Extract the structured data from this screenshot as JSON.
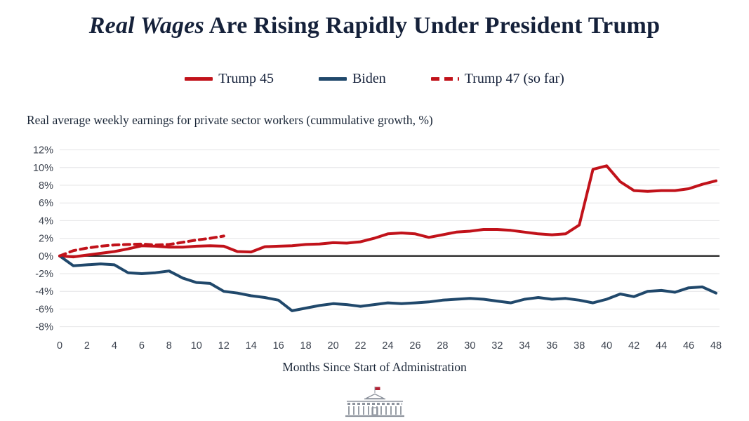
{
  "title": {
    "italic": "Real Wages",
    "rest": " Are Rising Rapidly Under President Trump"
  },
  "subtitle": "Real average weekly earnings for private sector workers (cummulative growth, %)",
  "legend": [
    {
      "label": "Trump 45",
      "style": "solid",
      "color": "#c1121a"
    },
    {
      "label": "Biden",
      "style": "solid",
      "color": "#20486b"
    },
    {
      "label": "Trump 47 (so far)",
      "style": "dashed",
      "color": "#c1121a"
    }
  ],
  "colors": {
    "grid": "#e4e4e6",
    "zero_line": "#1a1a1a",
    "tick_text": "#3b424e",
    "title_text": "#15213a",
    "logo_gray": "#8d939d",
    "flag_red": "#b22234"
  },
  "chart_data": {
    "type": "line",
    "title": "Real Wages Are Rising Rapidly Under President Trump",
    "subtitle": "Real average weekly earnings for private sector workers (cummulative growth, %)",
    "xlabel": "Months Since Start of Administration",
    "ylabel": "",
    "xlim": [
      0,
      48
    ],
    "ylim": [
      -8,
      12
    ],
    "grid": true,
    "zero_line": true,
    "legend_position": "top",
    "xticks": [
      0,
      2,
      4,
      6,
      8,
      10,
      12,
      14,
      16,
      18,
      20,
      22,
      24,
      26,
      28,
      30,
      32,
      34,
      36,
      38,
      40,
      42,
      44,
      46,
      48
    ],
    "yticks": [
      "12%",
      "10%",
      "8%",
      "6%",
      "4%",
      "2%",
      "0%",
      "-2%",
      "-4%",
      "-6%",
      "-8%"
    ],
    "x": [
      0,
      1,
      2,
      3,
      4,
      5,
      6,
      7,
      8,
      9,
      10,
      11,
      12,
      13,
      14,
      15,
      16,
      17,
      18,
      19,
      20,
      21,
      22,
      23,
      24,
      25,
      26,
      27,
      28,
      29,
      30,
      31,
      32,
      33,
      34,
      35,
      36,
      37,
      38,
      39,
      40,
      41,
      42,
      43,
      44,
      45,
      46,
      47,
      48
    ],
    "series": [
      {
        "name": "Trump 45",
        "color": "#c1121a",
        "dash": false,
        "values": [
          0,
          -0.1,
          0.1,
          0.3,
          0.5,
          0.8,
          1.15,
          1.1,
          1.0,
          1.0,
          1.1,
          1.15,
          1.1,
          0.5,
          0.45,
          1.05,
          1.1,
          1.15,
          1.3,
          1.35,
          1.5,
          1.45,
          1.6,
          2.0,
          2.5,
          2.6,
          2.5,
          2.1,
          2.4,
          2.7,
          2.8,
          3.0,
          3.0,
          2.9,
          2.7,
          2.5,
          2.4,
          2.5,
          3.5,
          9.8,
          10.2,
          8.4,
          7.4,
          7.3,
          7.4,
          7.4,
          7.6,
          8.1,
          8.5
        ]
      },
      {
        "name": "Biden",
        "color": "#20486b",
        "dash": false,
        "values": [
          0,
          -1.1,
          -1.0,
          -0.9,
          -1.0,
          -1.9,
          -2.0,
          -1.9,
          -1.7,
          -2.5,
          -3.0,
          -3.1,
          -4.0,
          -4.2,
          -4.5,
          -4.7,
          -5.0,
          -6.2,
          -5.9,
          -5.6,
          -5.4,
          -5.5,
          -5.7,
          -5.5,
          -5.3,
          -5.4,
          -5.3,
          -5.2,
          -5.0,
          -4.9,
          -4.8,
          -4.9,
          -5.1,
          -5.3,
          -4.9,
          -4.7,
          -4.9,
          -4.8,
          -5.0,
          -5.3,
          -4.9,
          -4.3,
          -4.6,
          -4.0,
          -3.9,
          -4.1,
          -3.6,
          -3.5,
          -4.2
        ]
      },
      {
        "name": "Trump 47 (so far)",
        "color": "#c1121a",
        "dash": true,
        "values": [
          0,
          0.6,
          0.9,
          1.1,
          1.25,
          1.3,
          1.35,
          1.25,
          1.3,
          1.55,
          1.8,
          2.0,
          2.25
        ]
      }
    ]
  }
}
